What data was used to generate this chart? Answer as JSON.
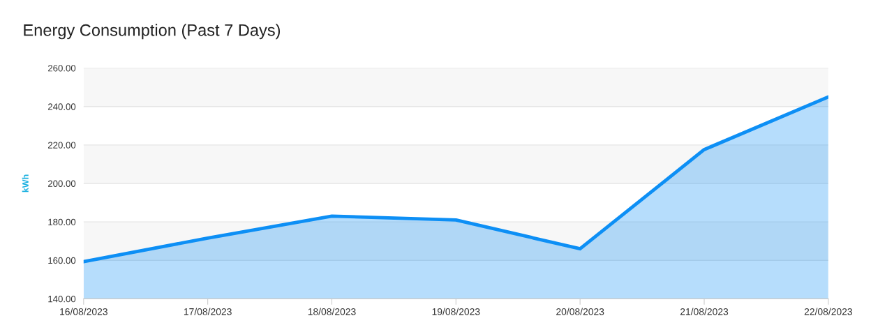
{
  "chart_data": {
    "type": "area",
    "title": "Energy Consumption (Past 7 Days)",
    "ylabel": "kWh",
    "categories": [
      "16/08/2023",
      "17/08/2023",
      "18/08/2023",
      "19/08/2023",
      "20/08/2023",
      "21/08/2023",
      "22/08/2023"
    ],
    "series": [
      {
        "color": "#0d8ff5",
        "values": [
          159.3,
          171.6,
          183,
          181,
          166,
          217.6,
          245
        ]
      }
    ],
    "ylim": [
      140,
      260
    ],
    "yticks": [
      {
        "value": 140,
        "label": "140.00"
      },
      {
        "value": 160,
        "label": "160.00"
      },
      {
        "value": 180,
        "label": "180.00"
      },
      {
        "value": 200,
        "label": "200.00"
      },
      {
        "value": 220,
        "label": "220.00"
      },
      {
        "value": 240,
        "label": "240.00"
      },
      {
        "value": 260,
        "label": "260.00"
      }
    ],
    "grid": "y",
    "legend": false
  }
}
